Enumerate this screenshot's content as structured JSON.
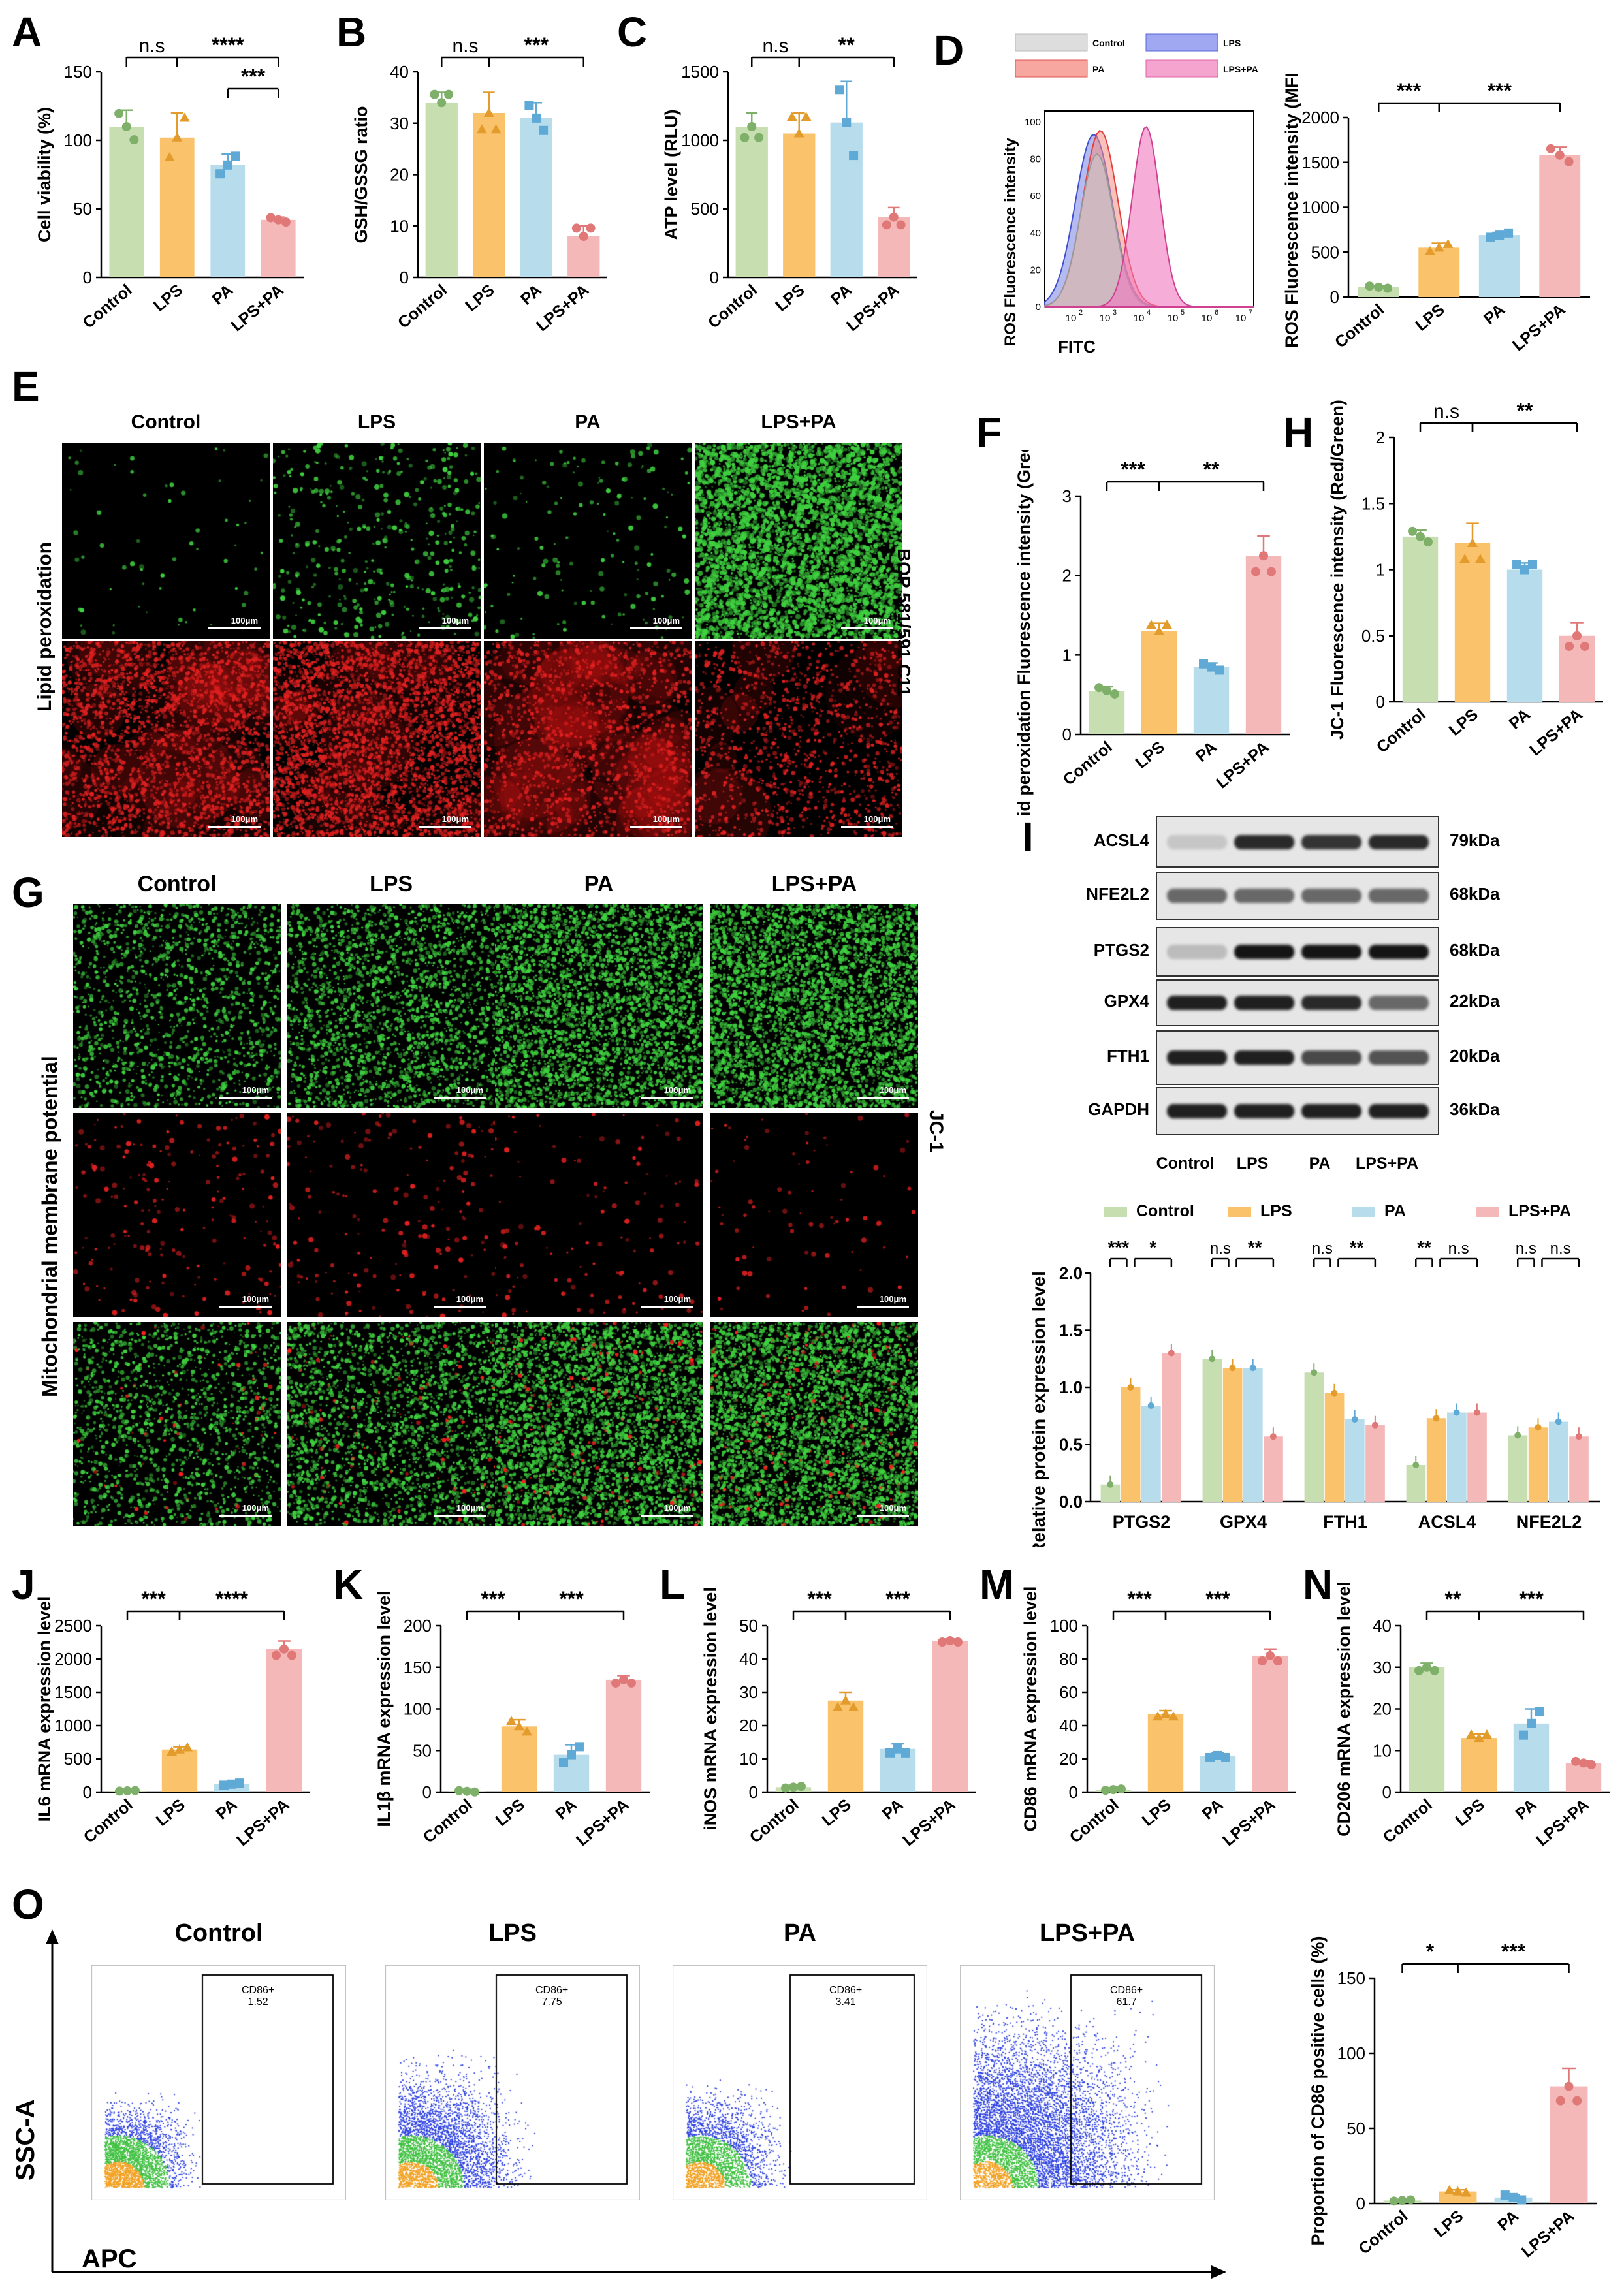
{
  "panel_labels": {
    "A": "A",
    "B": "B",
    "C": "C",
    "D": "D",
    "E": "E",
    "F": "F",
    "G": "G",
    "H": "H",
    "I": "I",
    "J": "J",
    "K": "K",
    "L": "L",
    "M": "M",
    "N": "N",
    "O": "O"
  },
  "groups": [
    "Control",
    "LPS",
    "PA",
    "LPS+PA"
  ],
  "colors": {
    "Control": "#c6deb0",
    "LPS": "#f9c26b",
    "PA": "#b7dcec",
    "LPS+PA": "#f4b8b8",
    "Control_dot": "#7fb069",
    "LPS_dot": "#e39b2b",
    "PA_dot": "#5ea9d6",
    "LPSPA_dot": "#e07878"
  },
  "chart_data": [
    {
      "id": "A",
      "type": "bar",
      "categories": [
        "Control",
        "LPS",
        "PA",
        "LPS+PA"
      ],
      "values": [
        110,
        102,
        82,
        42
      ],
      "errors": [
        12,
        18,
        8,
        2
      ],
      "ylabel": "Cell viability (%)",
      "ylim": [
        0,
        150
      ],
      "yticks": [
        0,
        50,
        100,
        150
      ],
      "sig": [
        {
          "from": 0,
          "to": 1,
          "text": "n.s",
          "level": 0
        },
        {
          "from": 1,
          "to": 3,
          "text": "****",
          "level": 0
        },
        {
          "from": 2,
          "to": 3,
          "text": "***",
          "level": 1
        }
      ]
    },
    {
      "id": "B",
      "type": "bar",
      "categories": [
        "Control",
        "LPS",
        "PA",
        "LPS+PA"
      ],
      "values": [
        34,
        32,
        31,
        8
      ],
      "errors": [
        2,
        4,
        3,
        2
      ],
      "ylabel": "GSH/GSSG ratio",
      "ylim": [
        0,
        40
      ],
      "yticks": [
        0,
        10,
        20,
        30,
        40
      ],
      "sig": [
        {
          "from": 0,
          "to": 1,
          "text": "n.s",
          "level": 0
        },
        {
          "from": 1,
          "to": 3,
          "text": "***",
          "level": 0
        }
      ]
    },
    {
      "id": "C",
      "type": "bar",
      "categories": [
        "Control",
        "LPS",
        "PA",
        "LPS+PA"
      ],
      "values": [
        1100,
        1050,
        1130,
        440
      ],
      "errors": [
        100,
        150,
        300,
        70
      ],
      "ylabel": "ATP level (RLU)",
      "ylim": [
        0,
        1500
      ],
      "yticks": [
        0,
        500,
        1000,
        1500
      ],
      "sig": [
        {
          "from": 0,
          "to": 1,
          "text": "n.s",
          "level": 0
        },
        {
          "from": 1,
          "to": 3,
          "text": "**",
          "level": 0
        }
      ]
    },
    {
      "id": "D2",
      "type": "bar",
      "categories": [
        "Control",
        "LPS",
        "PA",
        "LPS+PA"
      ],
      "values": [
        110,
        550,
        690,
        1580
      ],
      "errors": [
        15,
        50,
        30,
        90
      ],
      "ylabel": "ROS Fluorescence intensity (MFI)",
      "ylim": [
        0,
        2000
      ],
      "yticks": [
        0,
        500,
        1000,
        1500,
        2000
      ],
      "sig": [
        {
          "from": 0,
          "to": 1,
          "text": "***",
          "level": 0
        },
        {
          "from": 1,
          "to": 3,
          "text": "***",
          "level": 0
        }
      ]
    },
    {
      "id": "F",
      "type": "bar",
      "categories": [
        "Control",
        "LPS",
        "PA",
        "LPS+PA"
      ],
      "values": [
        0.55,
        1.3,
        0.85,
        2.25
      ],
      "errors": [
        0.05,
        0.1,
        0.05,
        0.25
      ],
      "ylabel": "Lipid peroxidation Fluorescence intensity (Green/Red)",
      "ylim": [
        0,
        3
      ],
      "yticks": [
        0,
        1,
        2,
        3
      ],
      "sig": [
        {
          "from": 0,
          "to": 1,
          "text": "***",
          "level": 0
        },
        {
          "from": 1,
          "to": 3,
          "text": "**",
          "level": 0
        }
      ]
    },
    {
      "id": "H",
      "type": "bar",
      "categories": [
        "Control",
        "LPS",
        "PA",
        "LPS+PA"
      ],
      "values": [
        1.25,
        1.2,
        1.0,
        0.5
      ],
      "errors": [
        0.05,
        0.15,
        0.05,
        0.1
      ],
      "ylabel": "JC-1 Fluorescence intensity (Red/Green)",
      "ylim": [
        0,
        2
      ],
      "yticks": [
        0,
        0.5,
        1.0,
        1.5,
        2.0
      ],
      "sig": [
        {
          "from": 0,
          "to": 1,
          "text": "n.s",
          "level": 0
        },
        {
          "from": 1,
          "to": 3,
          "text": "**",
          "level": 0
        }
      ]
    },
    {
      "id": "J",
      "type": "bar",
      "categories": [
        "Control",
        "LPS",
        "PA",
        "LPS+PA"
      ],
      "values": [
        20,
        640,
        120,
        2150
      ],
      "errors": [
        5,
        40,
        20,
        120
      ],
      "ylabel": "IL6 mRNA expression level",
      "ylim": [
        0,
        2500
      ],
      "yticks": [
        0,
        500,
        1000,
        1500,
        2000,
        2500
      ],
      "sig": [
        {
          "from": 0,
          "to": 1,
          "text": "***",
          "level": 0
        },
        {
          "from": 1,
          "to": 3,
          "text": "****",
          "level": 0
        }
      ]
    },
    {
      "id": "K",
      "type": "bar",
      "categories": [
        "Control",
        "LPS",
        "PA",
        "LPS+PA"
      ],
      "values": [
        1,
        79,
        45,
        135
      ],
      "errors": [
        1,
        8,
        12,
        5
      ],
      "ylabel": "IL1β mRNA expression level",
      "ylim": [
        0,
        200
      ],
      "yticks": [
        0,
        50,
        100,
        150,
        200
      ],
      "sig": [
        {
          "from": 0,
          "to": 1,
          "text": "***",
          "level": 0
        },
        {
          "from": 1,
          "to": 3,
          "text": "***",
          "level": 0
        }
      ]
    },
    {
      "id": "L",
      "type": "bar",
      "categories": [
        "Control",
        "LPS",
        "PA",
        "LPS+PA"
      ],
      "values": [
        1.5,
        27.5,
        13,
        45.5
      ],
      "errors": [
        0.3,
        2.5,
        1.5,
        0.5
      ],
      "ylabel": "iNOS mRNA expression level",
      "ylim": [
        0,
        50
      ],
      "yticks": [
        0,
        10,
        20,
        30,
        40,
        50
      ],
      "sig": [
        {
          "from": 0,
          "to": 1,
          "text": "***",
          "level": 0
        },
        {
          "from": 1,
          "to": 3,
          "text": "***",
          "level": 0
        }
      ]
    },
    {
      "id": "M",
      "type": "bar",
      "categories": [
        "Control",
        "LPS",
        "PA",
        "LPS+PA"
      ],
      "values": [
        1.5,
        47,
        22,
        82
      ],
      "errors": [
        0.5,
        2,
        1.5,
        4
      ],
      "ylabel": "CD86 mRNA expression level",
      "ylim": [
        0,
        100
      ],
      "yticks": [
        0,
        20,
        40,
        60,
        80,
        100
      ],
      "sig": [
        {
          "from": 0,
          "to": 1,
          "text": "***",
          "level": 0
        },
        {
          "from": 1,
          "to": 3,
          "text": "***",
          "level": 0
        }
      ]
    },
    {
      "id": "N",
      "type": "bar",
      "categories": [
        "Control",
        "LPS",
        "PA",
        "LPS+PA"
      ],
      "values": [
        30,
        13,
        16.5,
        7
      ],
      "errors": [
        1,
        1,
        3.5,
        0.5
      ],
      "ylabel": "CD206 mRNA expression level",
      "ylim": [
        0,
        40
      ],
      "yticks": [
        0,
        10,
        20,
        30,
        40
      ],
      "sig": [
        {
          "from": 0,
          "to": 1,
          "text": "**",
          "level": 0
        },
        {
          "from": 1,
          "to": 3,
          "text": "***",
          "level": 0
        }
      ]
    },
    {
      "id": "O2",
      "type": "bar",
      "categories": [
        "Control",
        "LPS",
        "PA",
        "LPS+PA"
      ],
      "values": [
        2,
        8,
        4,
        78
      ],
      "errors": [
        0.5,
        1,
        2,
        12
      ],
      "ylabel": "Proportion of CD86 positive cells (%)",
      "ylim": [
        0,
        150
      ],
      "yticks": [
        0,
        50,
        100,
        150
      ],
      "sig": [
        {
          "from": 0,
          "to": 1,
          "text": "*",
          "level": 0
        },
        {
          "from": 1,
          "to": 3,
          "text": "***",
          "level": 0
        }
      ]
    },
    {
      "id": "Ibar",
      "type": "bar",
      "categories": [
        "PTGS2",
        "GPX4",
        "FTH1",
        "ACSL4",
        "NFE2L2"
      ],
      "series": [
        {
          "name": "Control",
          "values": [
            0.15,
            1.25,
            1.13,
            0.32,
            0.58
          ]
        },
        {
          "name": "LPS",
          "values": [
            1.0,
            1.17,
            0.95,
            0.73,
            0.65
          ]
        },
        {
          "name": "PA",
          "values": [
            0.84,
            1.17,
            0.72,
            0.78,
            0.7
          ]
        },
        {
          "name": "LPS+PA",
          "values": [
            1.3,
            0.57,
            0.67,
            0.78,
            0.57
          ]
        }
      ],
      "ylabel": "Relative protein expression level",
      "ylim": [
        0,
        2.0
      ],
      "yticks": [
        0,
        0.5,
        1.0,
        1.5,
        2.0
      ],
      "sig": [
        [
          "***",
          "*"
        ],
        [
          "n.s",
          "**"
        ],
        [
          "n.s",
          "**"
        ],
        [
          "**",
          "n.s"
        ],
        [
          "n.s",
          "n.s"
        ]
      ]
    }
  ],
  "panelD_hist": {
    "ylabel": "ROS Fluorescence intensity",
    "xlabel": "FITC",
    "legend": [
      "Control",
      "LPS",
      "PA",
      "LPS+PA"
    ],
    "yticks": [
      "0",
      "20",
      "40",
      "60",
      "80",
      "100"
    ],
    "xticks": [
      "10",
      "10",
      "10",
      "10",
      "10",
      "10"
    ],
    "xexp": [
      "2",
      "3",
      "4",
      "5",
      "6",
      "7"
    ]
  },
  "panelE": {
    "columns": [
      "Control",
      "LPS",
      "PA",
      "LPS+PA"
    ],
    "rowlabel": "Lipid peroxidation",
    "sidelabel": "BOP 581/591 C11",
    "scale": "100μm"
  },
  "panelG": {
    "columns": [
      "Control",
      "LPS",
      "PA",
      "LPS+PA"
    ],
    "rowlabel": "Mitochondrial membrane potential",
    "sidelabel": "JC-1",
    "scale": "100μm"
  },
  "panelI_blot": {
    "rows": [
      {
        "name": "ACSL4",
        "kda": "79kDa"
      },
      {
        "name": "NFE2L2",
        "kda": "68kDa"
      },
      {
        "name": "PTGS2",
        "kda": "68kDa"
      },
      {
        "name": "GPX4",
        "kda": "22kDa"
      },
      {
        "name": "FTH1",
        "kda": "20kDa"
      },
      {
        "name": "GAPDH",
        "kda": "36kDa"
      }
    ],
    "lanes": [
      "Control",
      "LPS",
      "PA",
      "LPS+PA"
    ]
  },
  "panelO": {
    "titles": [
      "Control",
      "LPS",
      "PA",
      "LPS+PA"
    ],
    "gate": "CD86+",
    "values": [
      "1.52",
      "7.75",
      "3.41",
      "61.7"
    ],
    "ylabel": "SSC-A",
    "xlabel": "APC"
  }
}
